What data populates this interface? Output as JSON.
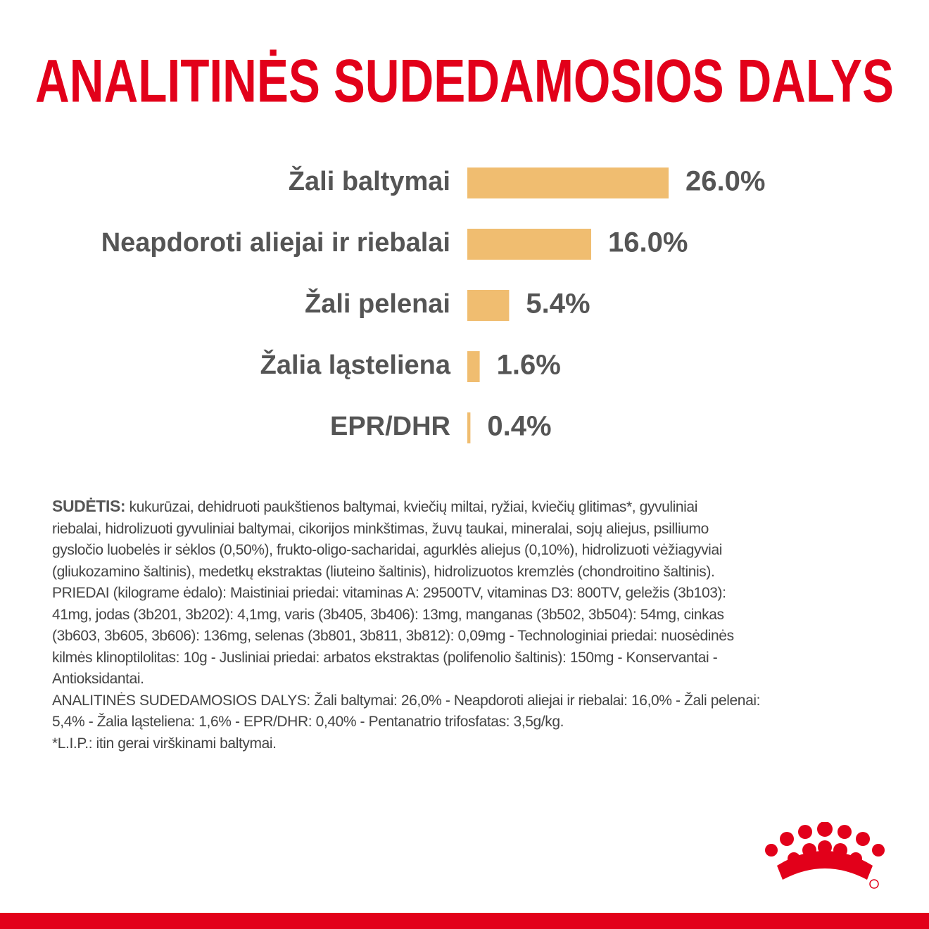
{
  "chart_data": {
    "type": "bar",
    "orientation": "horizontal",
    "title": "ANALITINĖS SUDEDAMOSIOS DALYS",
    "categories": [
      "Žali baltymai",
      "Neapdoroti aliejai ir riebalai",
      "Žali pelenai",
      "Žalia ląsteliena",
      "EPR/DHR"
    ],
    "values": [
      26.0,
      16.0,
      5.4,
      1.6,
      0.4
    ],
    "value_labels": [
      "26.0%",
      "16.0%",
      "5.4%",
      "1.6%",
      "0.4%"
    ],
    "color": "#f0bd70"
  },
  "composition": {
    "label": "SUDĖTIS:",
    "lines": [
      "kukurūzai, dehidruoti paukštienos baltymai, kviečių miltai, ryžiai, kviečių glitimas*, gyvuliniai",
      "riebalai, hidrolizuoti gyvuliniai baltymai, cikorijos minkštimas, žuvų taukai, mineralai, sojų aliejus, psilliumo",
      "gysločio luobelės ir sėklos (0,50%), frukto-oligo-sacharidai, agurklės aliejus (0,10%), hidrolizuoti vėžiagyviai",
      "(gliukozamino šaltinis), medetkų ekstraktas (liuteino šaltinis), hidrolizuotos kremzlės (chondroitino šaltinis).",
      "PRIEDAI (kilograme ėdalo): Maistiniai priedai: vitaminas A: 29500TV, vitaminas D3: 800TV, geležis (3b103):",
      "41mg, jodas (3b201, 3b202): 4,1mg, varis (3b405, 3b406): 13mg, manganas (3b502, 3b504): 54mg, cinkas",
      "(3b603, 3b605, 3b606): 136mg, selenas (3b801, 3b811, 3b812): 0,09mg - Technologiniai priedai: nuosėdinės",
      "kilmės klinoptilolitas: 10g - Jusliniai priedai: arbatos ekstraktas (polifenolio šaltinis): 150mg - Konservantai -",
      "Antioksidantai.",
      "ANALITINĖS SUDEDAMOSIOS DALYS: Žali baltymai: 26,0% - Neapdoroti aliejai ir riebalai: 16,0% - Žali pelenai:",
      "5,4% - Žalia ląsteliena: 1,6% - EPR/DHR: 0,40% - Pentanatrio trifosfatas: 3,5g/kg.",
      "*L.I.P.: itin gerai virškinami baltymai."
    ]
  }
}
